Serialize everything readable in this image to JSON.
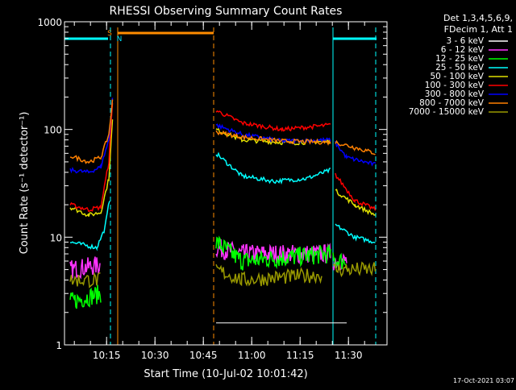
{
  "chart_data": {
    "type": "line",
    "title": "RHESSI Observing Summary Count Rates",
    "xlabel": "Start Time (10-Jul-02 10:01:42)",
    "ylabel": "Count Rate (s⁻¹ detector⁻¹)",
    "yscale": "log",
    "ylim": [
      1,
      1000
    ],
    "xlim": [
      "10:01:42",
      "10:39:00"
    ],
    "grid": false,
    "legend_position": "top-right",
    "legend_header": [
      "Det 1,3,4,5,6,9,",
      "FDecim 1, Att 1"
    ],
    "y_ticks": [
      {
        "label": "1",
        "value": 1
      },
      {
        "label": "10",
        "value": 10
      },
      {
        "label": "100",
        "value": 100
      },
      {
        "label": "1000",
        "value": 1000
      }
    ],
    "x_ticks": [
      {
        "label": "10:15",
        "value": "10:15"
      },
      {
        "label": "10:30",
        "value": "10:30"
      },
      {
        "label": "10:45",
        "value": "10:45"
      },
      {
        "label": "11:00",
        "value": "11:00"
      },
      {
        "label": "11:15",
        "value": "11:15"
      },
      {
        "label": "11:30",
        "value": "11:30"
      }
    ],
    "annotations": [
      {
        "text": "S",
        "color": "#ff8c00"
      },
      {
        "text": "N",
        "color": "#00e5ff"
      }
    ],
    "series": [
      {
        "name": "3 - 6 keV",
        "color": "#ffffff"
      },
      {
        "name": "6 - 12 keV",
        "color": "#ff33ff"
      },
      {
        "name": "12 - 25 keV",
        "color": "#00ff00"
      },
      {
        "name": "25 - 50 keV",
        "color": "#00ffff"
      },
      {
        "name": "50 - 100 keV",
        "color": "#e0e000"
      },
      {
        "name": "100 - 300 keV",
        "color": "#ff0000"
      },
      {
        "name": "300 - 800 keV",
        "color": "#0000ff"
      },
      {
        "name": "800 - 7000 keV",
        "color": "#ff8000"
      },
      {
        "name": "7000 - 15000 keV",
        "color": "#999900"
      }
    ]
  },
  "timestamp": "17-Oct-2021 03:07"
}
